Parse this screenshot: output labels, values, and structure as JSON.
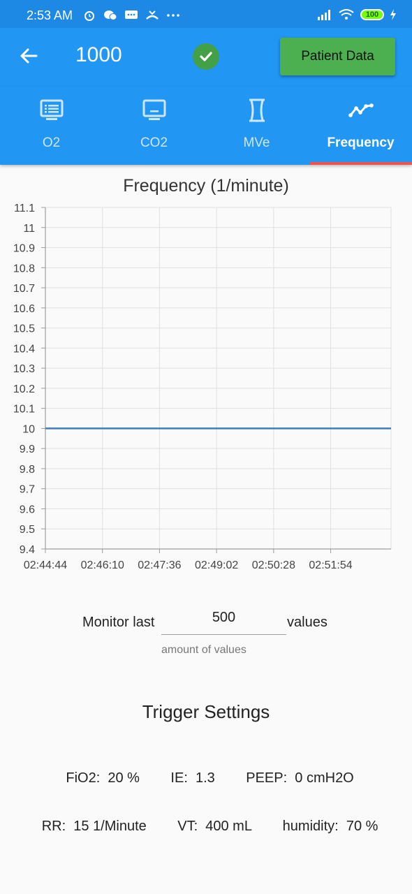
{
  "status_bar": {
    "time": "2:53 AM",
    "battery": "100",
    "icons": [
      "alarm-icon",
      "wechat-icon",
      "message-icon",
      "missed-call-icon",
      "more-icon"
    ],
    "right_icons": [
      "signal-icon",
      "wifi-icon",
      "battery-icon",
      "charging-icon"
    ]
  },
  "appbar": {
    "title": "1000",
    "status": "connected",
    "patient_data_label": "Patient Data",
    "colors": {
      "appbar": "#2196f3",
      "button": "#4caf50",
      "check": "#43a047"
    }
  },
  "tabs": [
    {
      "label": "O2",
      "icon": "list-monitor-icon",
      "active": false
    },
    {
      "label": "CO2",
      "icon": "monitor-icon",
      "active": false
    },
    {
      "label": "MVe",
      "icon": "hourglass-icon",
      "active": false
    },
    {
      "label": "Frequency",
      "icon": "trend-line-icon",
      "active": true
    }
  ],
  "chart_data": {
    "type": "line",
    "title": "Frequency (1/minute)",
    "x_ticks": [
      "02:44:44",
      "02:46:10",
      "02:47:36",
      "02:49:02",
      "02:50:28",
      "02:51:54"
    ],
    "y_ticks": [
      "11.1",
      "11",
      "10.9",
      "10.8",
      "10.7",
      "10.6",
      "10.5",
      "10.4",
      "10.3",
      "10.2",
      "10.1",
      "10",
      "9.9",
      "9.8",
      "9.7",
      "9.6",
      "9.5",
      "9.4"
    ],
    "ylim": [
      9.4,
      11.1
    ],
    "xlim": [
      "02:44:44",
      "02:53:25"
    ],
    "series": [
      {
        "x": [
          "02:44:44",
          "02:53:25"
        ],
        "values": [
          10,
          10
        ],
        "color": "#3b7dbf"
      }
    ],
    "grid": true
  },
  "monitor": {
    "prefix": "Monitor last",
    "value": "500",
    "suffix": "values",
    "helper": "amount of values"
  },
  "trigger_settings": {
    "title": "Trigger Settings",
    "fio2": "FiO2:  20 %",
    "ie": "IE:  1.3",
    "peep": "PEEP:  0 cmH2O",
    "rr": "RR:  15 1/Minute",
    "vt": "VT:  400 mL",
    "humidity": "humidity:  70 %"
  }
}
